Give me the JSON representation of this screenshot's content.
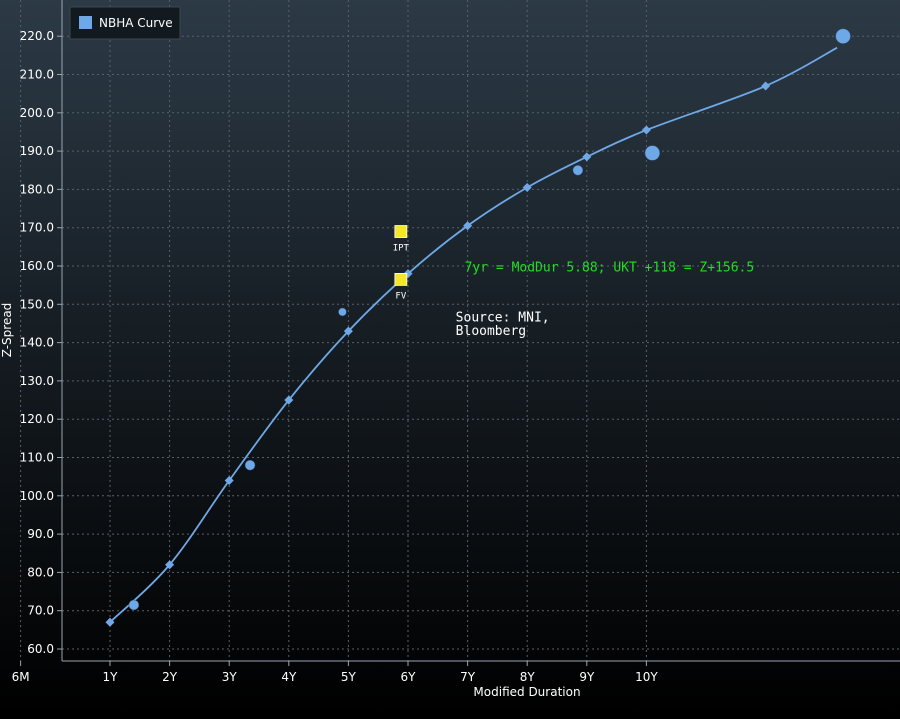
{
  "chart_data": {
    "type": "scatter",
    "legend": {
      "label": "NBHA Curve",
      "color": "#6ea8e6",
      "placement": "top-left"
    },
    "xlabel": "Modified Duration",
    "ylabel": "Z-Spread",
    "xlim": [
      -0.5,
      13.2
    ],
    "ylim": [
      58,
      224
    ],
    "x_ticks": [
      {
        "value": -0.5,
        "label": "6M"
      },
      {
        "value": 1,
        "label": "1Y"
      },
      {
        "value": 2,
        "label": "2Y"
      },
      {
        "value": 3,
        "label": "3Y"
      },
      {
        "value": 4,
        "label": "4Y"
      },
      {
        "value": 5,
        "label": "5Y"
      },
      {
        "value": 6,
        "label": "6Y"
      },
      {
        "value": 7,
        "label": "7Y"
      },
      {
        "value": 8,
        "label": "8Y"
      },
      {
        "value": 9,
        "label": "9Y"
      },
      {
        "value": 10,
        "label": "10Y"
      }
    ],
    "y_ticks": [
      60,
      70,
      80,
      90,
      100,
      110,
      120,
      130,
      140,
      150,
      160,
      170,
      180,
      190,
      200,
      210,
      220
    ],
    "y_tick_labels": [
      "60.0",
      "70.0",
      "80.0",
      "90.0",
      "100.0",
      "110.0",
      "120.0",
      "130.0",
      "140.0",
      "150.0",
      "160.0",
      "170.0",
      "180.0",
      "190.0",
      "200.0",
      "210.0",
      "220.0"
    ],
    "grid": true,
    "series": [
      {
        "name": "NBHA Curve",
        "kind": "curve",
        "color": "#6ea8e6",
        "points": [
          {
            "x": 1.0,
            "y": 67
          },
          {
            "x": 2.0,
            "y": 82
          },
          {
            "x": 3.0,
            "y": 104
          },
          {
            "x": 4.0,
            "y": 125
          },
          {
            "x": 5.0,
            "y": 143
          },
          {
            "x": 6.0,
            "y": 158
          },
          {
            "x": 7.0,
            "y": 170.5
          },
          {
            "x": 8.0,
            "y": 180.5
          },
          {
            "x": 9.0,
            "y": 188.5
          },
          {
            "x": 10.0,
            "y": 195.5
          },
          {
            "x": 12.0,
            "y": 207
          },
          {
            "x": 13.2,
            "y": 217
          }
        ]
      },
      {
        "kind": "bonds",
        "color": "#6ea8e6",
        "points": [
          {
            "x": 1.4,
            "y": 71.5,
            "size": "medium"
          },
          {
            "x": 3.35,
            "y": 108,
            "size": "medium"
          },
          {
            "x": 4.9,
            "y": 148,
            "size": "small"
          },
          {
            "x": 8.85,
            "y": 185,
            "size": "medium"
          },
          {
            "x": 10.1,
            "y": 189.5,
            "size": "large"
          },
          {
            "x": 13.3,
            "y": 220,
            "size": "large"
          }
        ]
      },
      {
        "kind": "markers",
        "color": "#f5e62a",
        "points": [
          {
            "x": 5.88,
            "y": 169,
            "label": "IPT"
          },
          {
            "x": 5.88,
            "y": 156.5,
            "label": "FV"
          }
        ]
      }
    ],
    "annotations": [
      {
        "text": "7yr = ModDur 5.88;  UKT +118 = Z+156.5",
        "x": 6.95,
        "y": 158.5,
        "color": "#22dd22"
      },
      {
        "text": "Source: MNI,",
        "x": 6.8,
        "y": 145.5,
        "color": "#ffffff"
      },
      {
        "text": "Bloomberg",
        "x": 6.8,
        "y": 142,
        "color": "#ffffff"
      }
    ]
  }
}
